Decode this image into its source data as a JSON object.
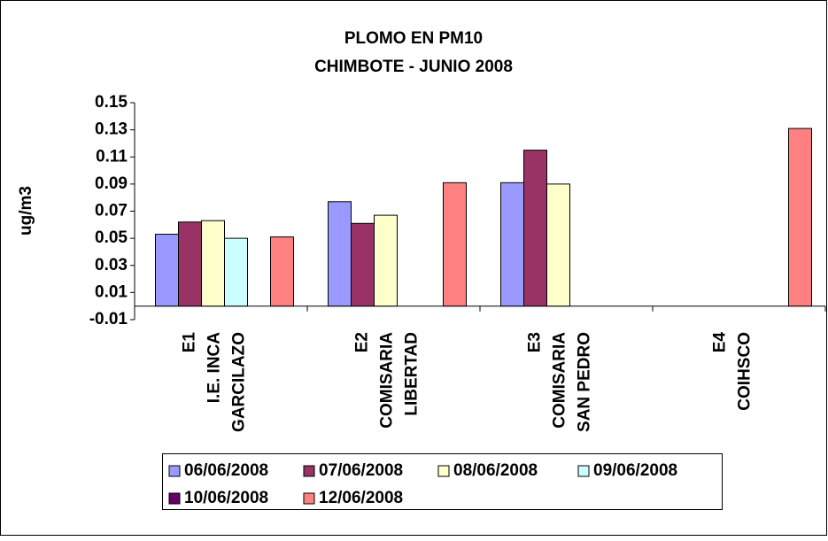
{
  "chart_data": {
    "type": "bar",
    "title": "PLOMO EN PM10",
    "subtitle": "CHIMBOTE - JUNIO 2008",
    "y_label": "ug/m3",
    "categories": [
      [
        "E1",
        "I.E. INCA",
        "GARCILAZO"
      ],
      [
        "E2",
        "COMISARIA",
        "LIBERTAD"
      ],
      [
        "E3",
        "COMISARIA",
        "SAN PEDRO"
      ],
      [
        "E4",
        "COIHSCO"
      ]
    ],
    "series": [
      {
        "name": "06/06/2008",
        "color": "#9999ff",
        "values": [
          0.053,
          0.077,
          0.091,
          null
        ]
      },
      {
        "name": "07/06/2008",
        "color": "#993366",
        "values": [
          0.062,
          0.061,
          0.115,
          null
        ]
      },
      {
        "name": "08/06/2008",
        "color": "#ffffcc",
        "values": [
          0.063,
          0.067,
          0.09,
          null
        ]
      },
      {
        "name": "09/06/2008",
        "color": "#ccffff",
        "values": [
          0.05,
          null,
          null,
          null
        ]
      },
      {
        "name": "10/06/2008",
        "color": "#660066",
        "values": [
          null,
          null,
          null,
          null
        ]
      },
      {
        "name": "12/06/2008",
        "color": "#ff8080",
        "values": [
          0.051,
          0.091,
          null,
          0.131
        ]
      }
    ],
    "ylim": [
      -0.01,
      0.15
    ],
    "yticks": [
      -0.01,
      0.01,
      0.03,
      0.05,
      0.07,
      0.09,
      0.11,
      0.13,
      0.15
    ],
    "legend": "bottom"
  }
}
